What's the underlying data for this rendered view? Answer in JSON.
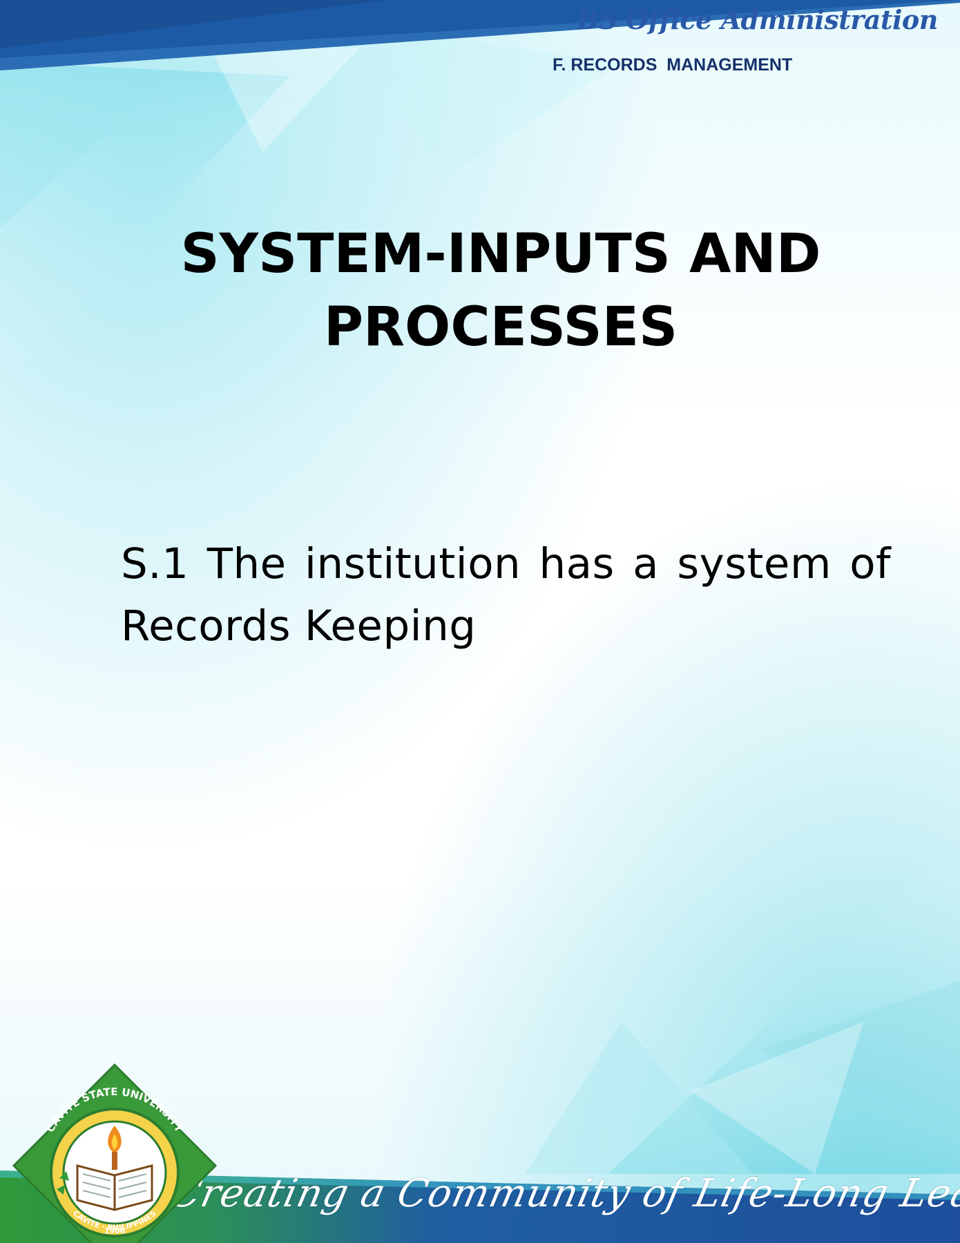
{
  "header": {
    "program": "BS Office Administration",
    "section": "F. RECORDS  MANAGEMENT"
  },
  "title": {
    "line1": "SYSTEM-INPUTS AND",
    "line2": "PROCESSES"
  },
  "statement": "S.1 The institution has a system of Records Keeping",
  "footer": {
    "tagline": "Creating a Community of Life-Long Learners"
  },
  "seal": {
    "ring_text_top": "CAVITE STATE UNIVERSITY",
    "ring_text_bottom": "CAVITE · PHILIPPINES",
    "year": "1906"
  },
  "colors": {
    "header_blue": "#1c5aa5",
    "title_blue": "#2a58a8",
    "subtitle_navy": "#16306b",
    "footer_blue": "#1d4f9d",
    "footer_green": "#2f9a3a",
    "seal_green": "#3a9a3a",
    "background_cyan": "#7fdce8"
  }
}
